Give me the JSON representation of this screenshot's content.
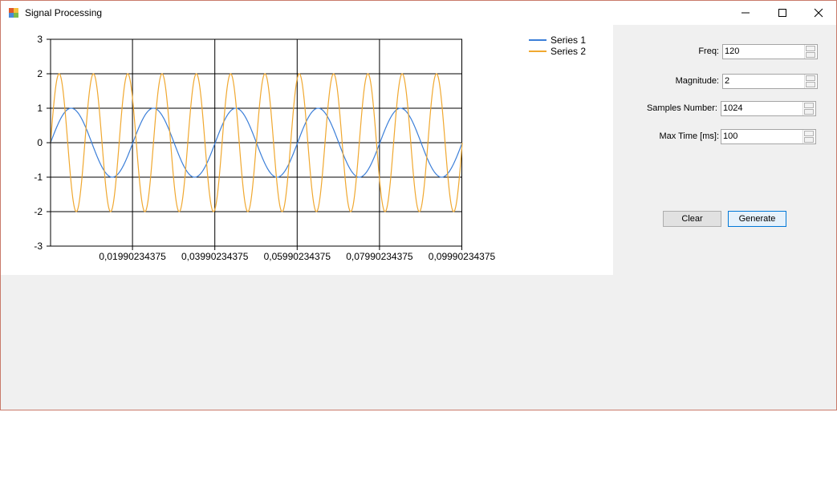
{
  "window": {
    "title": "Signal Processing",
    "icons": {
      "app": "app-icon",
      "minimize": "minimize-icon",
      "maximize": "maximize-icon",
      "close": "close-icon"
    }
  },
  "form": {
    "freq": {
      "label": "Freq:",
      "value": "120"
    },
    "magnitude": {
      "label": "Magnitude:",
      "value": "2"
    },
    "samples": {
      "label": "Samples Number:",
      "value": "1024"
    },
    "max_time": {
      "label": "Max Time [ms]:",
      "value": "100"
    }
  },
  "buttons": {
    "clear": "Clear",
    "generate": "Generate"
  },
  "chart_data": {
    "type": "line",
    "series": [
      {
        "name": "Series 1",
        "color": "#3c7fd8",
        "amplitude": 1,
        "frequency_hz": 50
      },
      {
        "name": "Series 2",
        "color": "#f0a830",
        "amplitude": 2,
        "frequency_hz": 120
      }
    ],
    "x_range": [
      0,
      0.1
    ],
    "ylim": [
      -3,
      3
    ],
    "y_ticks": [
      "3",
      "2",
      "1",
      "0",
      "-1",
      "-2",
      "-3"
    ],
    "x_ticks": [
      "0,01990234375",
      "0,03990234375",
      "0,05990234375",
      "0,07990234375",
      "0,09990234375"
    ],
    "x_tick_values": [
      0.01990234375,
      0.03990234375,
      0.05990234375,
      0.07990234375,
      0.09990234375
    ],
    "grid": true,
    "legend_position": "top-right"
  }
}
